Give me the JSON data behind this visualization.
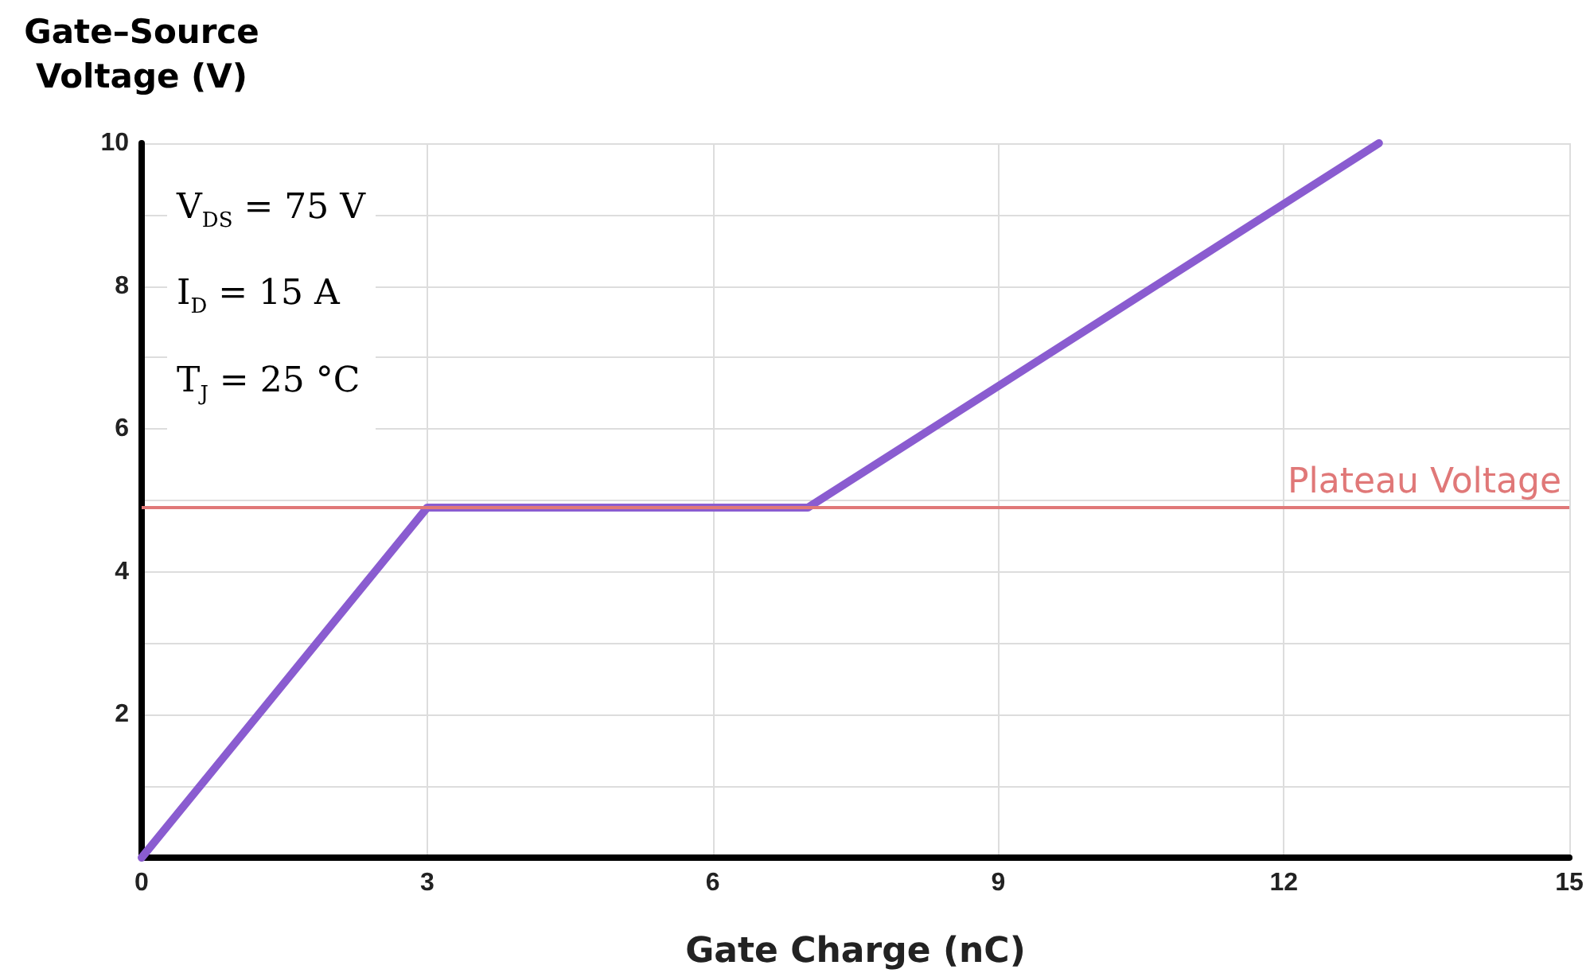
{
  "chart_data": {
    "type": "line",
    "xlabel": "Gate Charge (nC)",
    "ylabel": "Gate–Source Voltage (V)",
    "annotations": [
      "V$_{DS}$ = 75 V",
      "I$_{D}$ = 15 A",
      "T$_{J}$ = 25 °C"
    ],
    "x": [
      0,
      3,
      7,
      13
    ],
    "series": [
      {
        "color": "#8a5cd0",
        "values": [
          0,
          4.9,
          4.9,
          10
        ]
      }
    ],
    "xlim": [
      0,
      15
    ],
    "xticks": [
      0,
      3,
      6,
      9,
      12,
      15
    ],
    "ylim": [
      0,
      10
    ],
    "yticks": [
      {
        "value": 0,
        "label": null
      },
      {
        "value": 1,
        "label": null
      },
      2,
      {
        "value": 3,
        "label": null
      },
      4,
      {
        "value": 5,
        "label": null
      },
      6,
      {
        "value": 7,
        "label": null
      },
      8,
      {
        "value": 9,
        "label": null
      },
      10
    ],
    "ref_lines": [
      {
        "axis": "y",
        "value": 4.9,
        "label": "Plateau Voltage",
        "color": "#e07878"
      }
    ],
    "grid": true,
    "marker": "none",
    "line_style": "solid"
  }
}
